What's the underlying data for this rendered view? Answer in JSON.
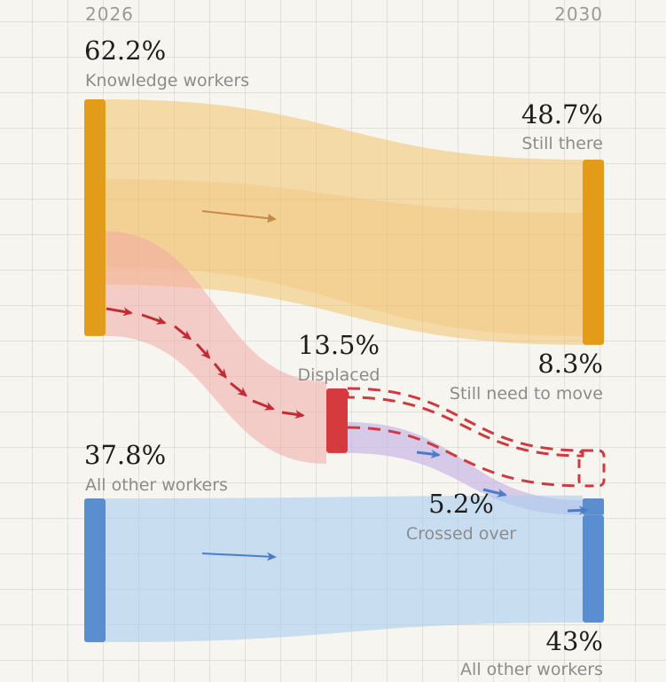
{
  "chart_data": {
    "type": "sankey",
    "unit": "%",
    "columns": [
      "2026",
      "2030"
    ],
    "sources": [
      {
        "label": "Knowledge workers",
        "value": 62.2,
        "color": "#e29c1a"
      },
      {
        "label": "All other workers",
        "value": 37.8,
        "color": "#5a8ed1"
      }
    ],
    "intermediate": {
      "label": "Displaced",
      "value": 13.5,
      "color": "#d53a3f"
    },
    "targets": [
      {
        "label": "Still there",
        "value": 48.7,
        "color": "#e29c1a"
      },
      {
        "label": "Still need to move",
        "value": 8.3,
        "color": "#d53a3f"
      },
      {
        "label": "Crossed over",
        "value": 5.2,
        "color": "#5a8ed1"
      },
      {
        "label": "All other workers",
        "value": 43,
        "color": "#5a8ed1"
      }
    ],
    "flows": [
      {
        "from": "Knowledge workers",
        "to": "Still there",
        "value": 48.7
      },
      {
        "from": "Knowledge workers",
        "to": "Displaced",
        "value": 13.5
      },
      {
        "from": "Displaced",
        "to": "Still need to move",
        "value": 8.3
      },
      {
        "from": "Displaced",
        "to": "Crossed over",
        "value": 5.2
      },
      {
        "from": "All other workers",
        "to": "All other workers",
        "value": 37.8
      }
    ]
  },
  "labels": {
    "year_left": "2026",
    "year_right": "2030",
    "knowledge_pct": "62.2%",
    "knowledge_label": "Knowledge workers",
    "still_pct": "48.7%",
    "still_label": "Still there",
    "displaced_pct": "13.5%",
    "displaced_label": "Displaced",
    "move_pct": "8.3%",
    "move_label": "Still need to move",
    "other_src_pct": "37.8%",
    "other_src_label": "All other workers",
    "crossed_pct": "5.2%",
    "crossed_label": "Crossed over",
    "other_tgt_pct": "43%",
    "other_tgt_label": "All other workers"
  }
}
